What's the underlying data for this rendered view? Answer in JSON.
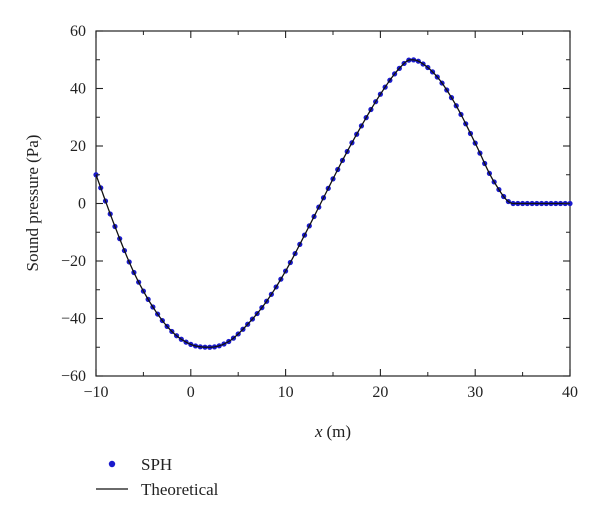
{
  "chart_data": {
    "type": "scatter",
    "xlabel_var": "x",
    "xlabel_unit": "(m)",
    "ylabel": "Sound pressure (Pa)",
    "xlim": [
      -10,
      40
    ],
    "ylim": [
      -60,
      60
    ],
    "xticks": [
      "−10",
      "0",
      "10",
      "20",
      "30",
      "40"
    ],
    "yticks": [
      "60",
      "40",
      "20",
      "0",
      "−20",
      "−40",
      "−60"
    ],
    "grid": false,
    "legend_position": "bottom-left, below plot",
    "series": [
      {
        "name": "SPH",
        "style": "markers",
        "color": "#1a1acc",
        "x_start": -10,
        "x_end": 40,
        "x_step": 0.5
      },
      {
        "name": "Theoretical",
        "style": "line",
        "color": "#111111",
        "x": [
          -10,
          -8,
          -6,
          -4,
          -2,
          0,
          2,
          4,
          6,
          8,
          10,
          12,
          14,
          16,
          18,
          20,
          22,
          23.2,
          24,
          26,
          28,
          30,
          32,
          34,
          36,
          38,
          40
        ],
        "y": [
          10,
          -8,
          -24,
          -36,
          -44.5,
          -49,
          -50,
          -48,
          -42,
          -34,
          -23.5,
          -11,
          2,
          15,
          27,
          38,
          47,
          50,
          49.5,
          44,
          34,
          21,
          7.5,
          0,
          0,
          0,
          0
        ]
      }
    ]
  }
}
